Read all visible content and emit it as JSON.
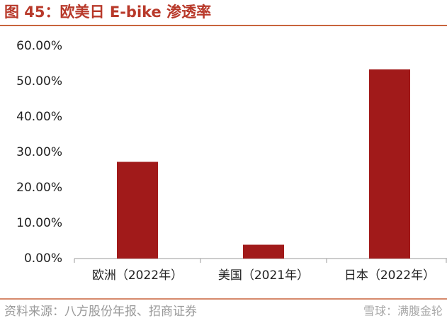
{
  "chart_data": {
    "type": "bar",
    "title": "图 45：欧美日 E-bike 渗透率",
    "categories": [
      "欧洲（2022年）",
      "美国（2021年）",
      "日本（2022年）"
    ],
    "values": [
      27.3,
      3.9,
      53.4
    ],
    "color": "#a11a1a",
    "ylim": [
      0,
      60
    ],
    "yticks": [
      {
        "value": 0,
        "label": "0.00%"
      },
      {
        "value": 10,
        "label": "10.00%"
      },
      {
        "value": 20,
        "label": "20.00%"
      },
      {
        "value": 30,
        "label": "30.00%"
      },
      {
        "value": 40,
        "label": "40.00%"
      },
      {
        "value": 50,
        "label": "50.00%"
      },
      {
        "value": 60,
        "label": "60.00%"
      }
    ],
    "grid": false
  },
  "source": "资料来源：八方股份年报、招商证券",
  "watermark": "雪球：满腹金轮"
}
